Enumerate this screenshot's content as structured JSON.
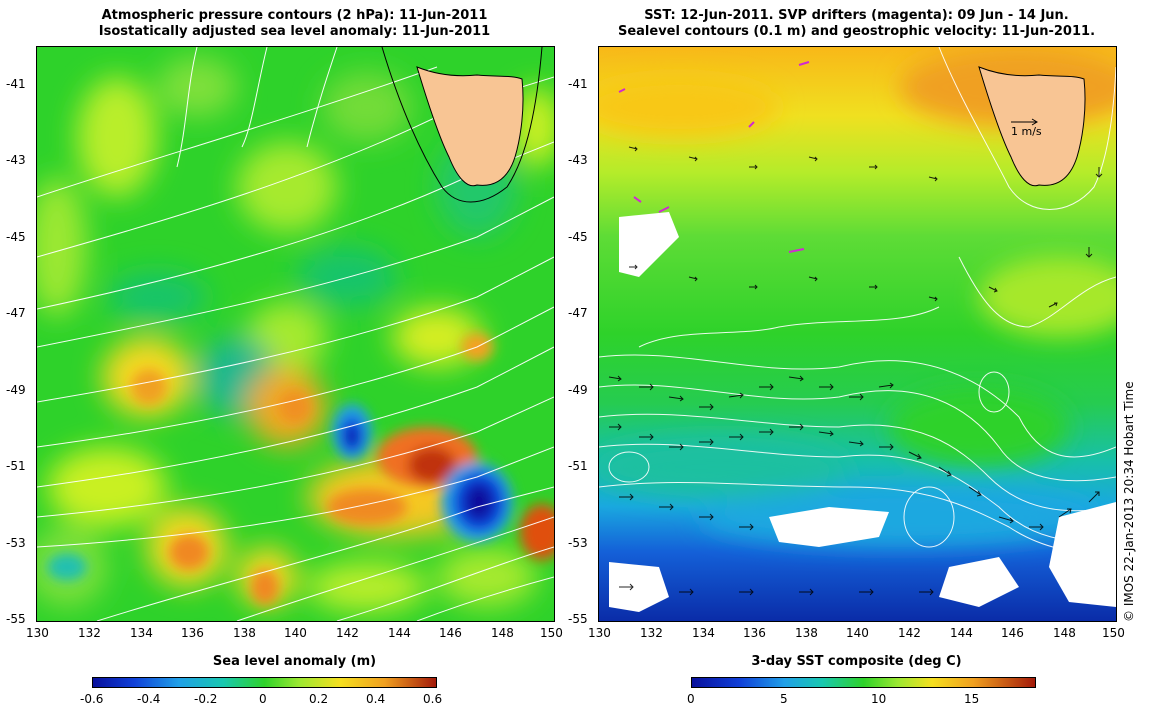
{
  "left_panel": {
    "title_line1": "Atmospheric pressure contours (2 hPa): 11-Jun-2011",
    "title_line2": "Isostatically adjusted sea level anomaly: 11-Jun-2011",
    "colorbar_label": "Sea level anomaly (m)",
    "colorbar_ticks": [
      "-0.6",
      "-0.4",
      "-0.2",
      "0",
      "0.2",
      "0.4",
      "0.6"
    ]
  },
  "right_panel": {
    "title_line1": "SST: 12-Jun-2011. SVP drifters (magenta): 09 Jun - 14 Jun.",
    "title_line2": "Sealevel contours (0.1 m) and geostrophic velocity: 11-Jun-2011.",
    "colorbar_label": "3-day SST composite (deg C)",
    "colorbar_ticks": [
      "0",
      "5",
      "10",
      "15"
    ],
    "velocity_key": "1 m/s"
  },
  "axes": {
    "lat_ticks": [
      "-41",
      "-43",
      "-45",
      "-47",
      "-49",
      "-51",
      "-53",
      "-55"
    ],
    "lon_ticks": [
      "130",
      "132",
      "134",
      "136",
      "138",
      "140",
      "142",
      "144",
      "146",
      "148",
      "150"
    ]
  },
  "credit": "© IMOS 22-Jan-2013 20:34 Hobart Time",
  "colors": {
    "land": "#f8c594",
    "sla_blue": "#08109c",
    "sla_red": "#a31a0a",
    "drifter_magenta": "#d02ad0"
  }
}
